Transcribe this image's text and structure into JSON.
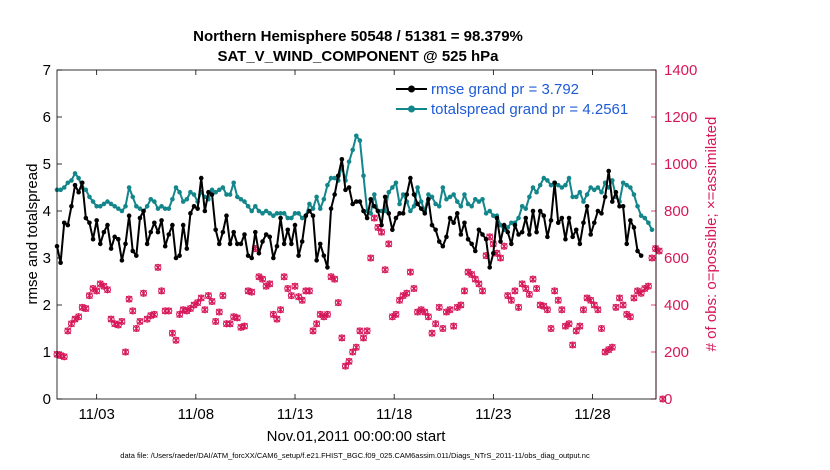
{
  "chart_data": {
    "type": "line",
    "title": "Northern Hemisphere 50548 / 51381 = 98.379%",
    "subtitle": "SAT_V_WIND_COMPONENT @ 525 hPa",
    "xlabel": "Nov.01,2011 00:00:00 start",
    "ylabel_left": "rmse and totalspread",
    "ylabel_right": "# of obs: o=possible; ×=assimilated",
    "footer": "data file: /Users/raeder/DAI/ATM_forcXX/CAM6_setup/f.e21.FHIST_BGC.f09_025.CAM6assim.011/Diags_NTrS_2011-11/obs_diag_output.nc",
    "xlim": [
      1.0,
      31.2
    ],
    "ylim_left": [
      0,
      7
    ],
    "ylim_right": [
      0,
      1400
    ],
    "x_ticks": [
      3,
      8,
      13,
      18,
      23,
      28
    ],
    "x_tick_labels": [
      "11/03",
      "11/08",
      "11/13",
      "11/18",
      "11/23",
      "11/28"
    ],
    "y_left_ticks": [
      0,
      1,
      2,
      3,
      4,
      5,
      6,
      7
    ],
    "y_right_ticks": [
      0,
      200,
      400,
      600,
      800,
      1000,
      1200,
      1400
    ],
    "colors": {
      "rmse": "#000000",
      "totalspread": "#12868a",
      "obs": "#d6185a",
      "legend_text": "#1f5bd6",
      "right_axis": "#d6185a"
    },
    "series": [
      {
        "name": "rmse grand pr = 3.792",
        "color": "#000000",
        "values": [
          3.25,
          2.9,
          3.75,
          3.7,
          4.1,
          4.55,
          4.4,
          4.6,
          3.85,
          3.75,
          3.4,
          3.8,
          3.3,
          3.55,
          3.7,
          3.2,
          3.45,
          3.4,
          2.95,
          3.3,
          3.9,
          3.15,
          3.05,
          3.85,
          4.0,
          3.3,
          3.55,
          3.75,
          3.55,
          3.8,
          3.25,
          3.5,
          3.7,
          3.0,
          3.05,
          3.7,
          3.2,
          3.95,
          4.1,
          4.05,
          4.7,
          4.0,
          4.4,
          4.35,
          3.6,
          3.3,
          3.55,
          3.9,
          3.3,
          3.55,
          3.3,
          3.3,
          3.5,
          3.05,
          3.0,
          3.55,
          3.1,
          3.35,
          3.5,
          3.45,
          3.0,
          3.25,
          3.85,
          3.3,
          3.6,
          3.3,
          3.7,
          3.05,
          3.35,
          3.9,
          4.0,
          3.9,
          2.95,
          3.3,
          3.05,
          2.8,
          4.05,
          4.35,
          4.75,
          5.1,
          4.45,
          4.5,
          4.15,
          4.2,
          4.2,
          4.0,
          3.85,
          4.25,
          4.1,
          4.0,
          3.7,
          4.3,
          3.95,
          3.6,
          3.85,
          3.95,
          3.95,
          4.35,
          4.7,
          4.35,
          4.15,
          4.05,
          3.95,
          4.25,
          3.7,
          3.6,
          3.35,
          3.25,
          3.45,
          3.85,
          3.75,
          3.95,
          3.5,
          3.75,
          3.4,
          3.3,
          3.15,
          3.6,
          3.5,
          3.4,
          2.8,
          3.1,
          3.85,
          3.35,
          3.7,
          3.55,
          3.3,
          3.7,
          3.5,
          3.55,
          3.85,
          3.5,
          4.0,
          3.55,
          4.0,
          3.9,
          3.45,
          3.8,
          4.6,
          3.75,
          3.85,
          3.4,
          3.85,
          3.45,
          3.6,
          3.3,
          3.75,
          4.1,
          3.5,
          3.75,
          4.0,
          3.95,
          4.3,
          4.85,
          4.2,
          4.4,
          4.1,
          4.1,
          3.3,
          3.8,
          3.65,
          3.15,
          3.05
        ]
      },
      {
        "name": "totalspread grand pr = 4.2561",
        "color": "#12868a",
        "values": [
          4.45,
          4.45,
          4.5,
          4.6,
          4.65,
          4.8,
          4.7,
          4.5,
          4.45,
          4.3,
          4.2,
          4.1,
          4.1,
          4.15,
          4.2,
          4.15,
          4.1,
          4.05,
          4.0,
          4.1,
          4.5,
          4.3,
          4.1,
          4.05,
          4.0,
          4.1,
          4.25,
          4.2,
          4.05,
          4.1,
          4.05,
          4.05,
          4.25,
          4.5,
          4.4,
          4.2,
          4.25,
          4.4,
          4.35,
          4.2,
          4.4,
          4.3,
          4.25,
          4.45,
          4.4,
          4.45,
          4.5,
          4.35,
          4.35,
          4.6,
          4.3,
          4.25,
          4.2,
          4.1,
          4.0,
          4.1,
          4.0,
          3.95,
          4.0,
          3.95,
          3.9,
          3.95,
          3.95,
          3.95,
          3.85,
          3.85,
          3.95,
          3.95,
          3.85,
          3.9,
          4.15,
          4.05,
          4.3,
          4.05,
          4.25,
          4.55,
          4.7,
          4.7,
          4.65,
          4.95,
          4.65,
          5.05,
          5.3,
          5.6,
          5.5,
          4.75,
          4.0,
          3.95,
          4.35,
          4.0,
          4.0,
          4.0,
          4.4,
          4.5,
          4.6,
          4.15,
          4.35,
          4.2,
          4.0,
          4.1,
          4.5,
          4.2,
          4.0,
          4.35,
          4.3,
          4.15,
          4.1,
          4.5,
          4.25,
          4.3,
          4.35,
          4.2,
          4.1,
          4.35,
          4.15,
          4.1,
          4.25,
          4.2,
          4.25,
          3.95,
          4.0,
          3.9,
          3.9,
          3.7,
          3.6,
          3.65,
          3.75,
          3.75,
          3.85,
          4.1,
          4.05,
          4.3,
          4.5,
          4.4,
          4.55,
          4.7,
          4.65,
          4.55,
          4.6,
          4.55,
          4.5,
          4.55,
          4.7,
          4.3,
          4.3,
          4.4,
          4.2,
          4.35,
          4.5,
          4.45,
          4.5,
          4.4,
          4.6,
          4.5,
          4.65,
          4.3,
          4.2,
          4.6,
          4.55,
          4.5,
          4.35,
          4.1,
          3.9,
          3.85,
          3.75,
          3.6
        ]
      }
    ],
    "obs_assimilated": [
      190,
      185,
      180,
      290,
      320,
      340,
      350,
      390,
      385,
      440,
      470,
      460,
      490,
      480,
      465,
      340,
      320,
      315,
      330,
      200,
      425,
      375,
      300,
      330,
      450,
      340,
      355,
      360,
      560,
      460,
      375,
      375,
      280,
      250,
      360,
      380,
      375,
      385,
      400,
      410,
      430,
      380,
      440,
      415,
      330,
      370,
      440,
      320,
      320,
      350,
      345,
      305,
      310,
      460,
      455,
      640,
      520,
      510,
      480,
      490,
      360,
      340,
      380,
      520,
      470,
      440,
      480,
      435,
      420,
      460,
      460,
      290,
      320,
      360,
      350,
      360,
      520,
      510,
      410,
      260,
      140,
      160,
      200,
      220,
      290,
      260,
      290,
      600,
      770,
      730,
      710,
      550,
      660,
      350,
      360,
      420,
      440,
      450,
      540,
      470,
      370,
      380,
      370,
      350,
      280,
      320,
      390,
      300,
      370,
      380,
      310,
      390,
      400,
      460,
      540,
      530,
      510,
      490,
      460,
      610,
      690,
      660,
      620,
      600,
      650,
      440,
      420,
      460,
      390,
      490,
      470,
      445,
      510,
      470,
      400,
      395,
      380,
      300,
      460,
      420,
      380,
      310,
      320,
      230,
      290,
      310,
      380,
      430,
      420,
      400,
      380,
      300,
      200,
      210,
      220,
      390,
      430,
      400,
      360,
      350,
      430,
      460,
      450,
      470,
      480,
      600,
      640,
      630,
      0
    ],
    "obs_possible": [
      190,
      185,
      180,
      290,
      320,
      340,
      350,
      390,
      385,
      440,
      470,
      460,
      490,
      480,
      465,
      340,
      320,
      315,
      330,
      200,
      425,
      375,
      300,
      330,
      450,
      340,
      355,
      360,
      560,
      460,
      375,
      375,
      280,
      250,
      360,
      380,
      375,
      385,
      400,
      410,
      430,
      380,
      440,
      415,
      330,
      370,
      440,
      320,
      320,
      350,
      345,
      305,
      310,
      460,
      455,
      640,
      520,
      510,
      480,
      490,
      360,
      340,
      380,
      520,
      470,
      440,
      480,
      435,
      420,
      460,
      460,
      290,
      320,
      360,
      350,
      360,
      520,
      510,
      410,
      260,
      140,
      160,
      200,
      220,
      290,
      260,
      290,
      600,
      770,
      730,
      710,
      550,
      660,
      350,
      360,
      420,
      440,
      450,
      540,
      470,
      370,
      380,
      370,
      350,
      280,
      320,
      390,
      300,
      370,
      380,
      310,
      390,
      400,
      460,
      540,
      530,
      510,
      490,
      460,
      610,
      690,
      660,
      620,
      600,
      650,
      440,
      420,
      460,
      390,
      490,
      470,
      445,
      510,
      470,
      400,
      395,
      380,
      300,
      460,
      420,
      380,
      310,
      320,
      230,
      290,
      310,
      380,
      430,
      420,
      400,
      380,
      300,
      200,
      210,
      220,
      390,
      430,
      400,
      360,
      350,
      430,
      460,
      450,
      470,
      480,
      600,
      640,
      630,
      0
    ]
  }
}
